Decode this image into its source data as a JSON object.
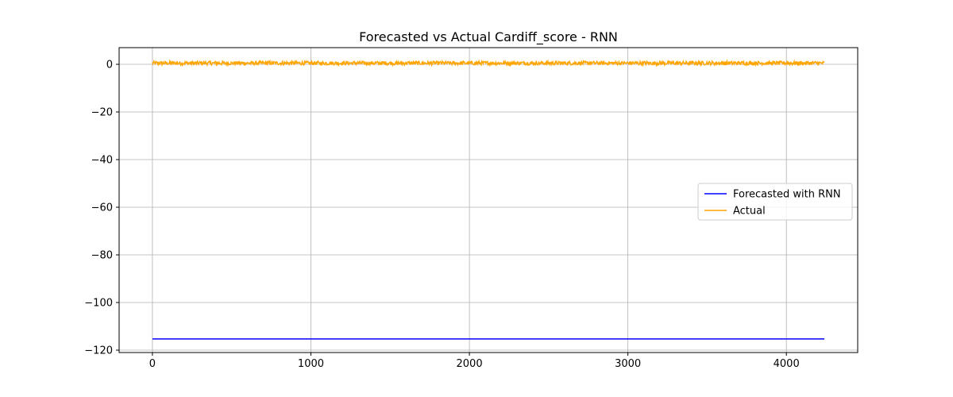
{
  "chart_data": {
    "type": "line",
    "title": "Forecasted vs Actual Cardiff_score - RNN",
    "xlabel": "",
    "ylabel": "",
    "xlim": [
      -210,
      4450
    ],
    "ylim": [
      -121,
      7
    ],
    "x_ticks": [
      0,
      1000,
      2000,
      3000,
      4000
    ],
    "x_tick_labels": [
      "0",
      "1000",
      "2000",
      "3000",
      "4000"
    ],
    "y_ticks": [
      0,
      -20,
      -40,
      -60,
      -80,
      -100,
      -120
    ],
    "y_tick_labels": [
      "0",
      "−20",
      "−40",
      "−60",
      "−80",
      "−100",
      "−120"
    ],
    "grid": true,
    "legend_location": "center right",
    "series": [
      {
        "name": "Forecasted with RNN",
        "color": "#0000ff",
        "x_start": 0,
        "x_end": 4240,
        "value": -115.3
      },
      {
        "name": "Actual",
        "color": "#ffa500",
        "x_start": 0,
        "x_end": 4240,
        "mean": 0.5,
        "range": [
          -0.3,
          1.3
        ]
      }
    ]
  }
}
